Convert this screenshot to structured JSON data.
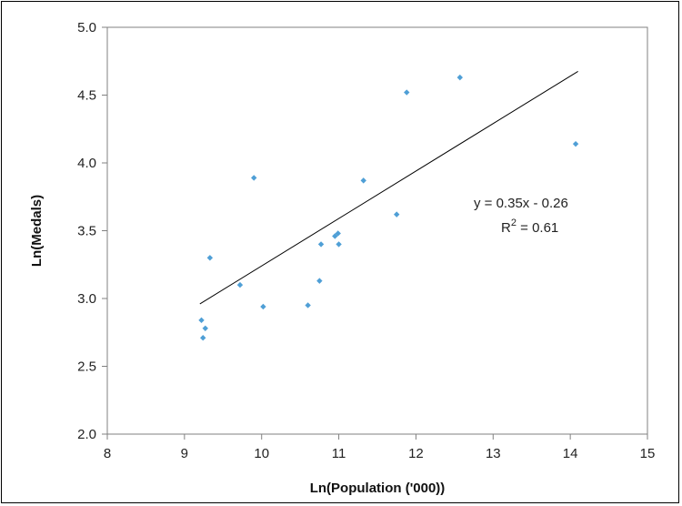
{
  "chart_data": {
    "type": "scatter",
    "xlabel": "Ln(Population ('000))",
    "ylabel": "Ln(Medals)",
    "xlim": [
      8,
      15
    ],
    "ylim": [
      2.0,
      5.0
    ],
    "x_ticks": [
      "8",
      "9",
      "10",
      "11",
      "12",
      "13",
      "14",
      "15"
    ],
    "y_ticks": [
      "2.0",
      "2.5",
      "3.0",
      "3.5",
      "4.0",
      "4.5",
      "5.0"
    ],
    "grid": false,
    "legend": "none",
    "marker_color": "#4f9fd6",
    "trendline_color": "#000000",
    "series": [
      {
        "points": [
          [
            9.22,
            2.84
          ],
          [
            9.24,
            2.71
          ],
          [
            9.27,
            2.78
          ],
          [
            9.33,
            3.3
          ],
          [
            9.72,
            3.1
          ],
          [
            9.9,
            3.89
          ],
          [
            10.02,
            2.94
          ],
          [
            10.6,
            2.95
          ],
          [
            10.75,
            3.13
          ],
          [
            10.77,
            3.4
          ],
          [
            10.95,
            3.46
          ],
          [
            10.99,
            3.48
          ],
          [
            11.0,
            3.4
          ],
          [
            11.32,
            3.87
          ],
          [
            11.75,
            3.62
          ],
          [
            11.88,
            4.52
          ],
          [
            12.57,
            4.63
          ],
          [
            14.07,
            4.14
          ]
        ]
      }
    ],
    "trendline": {
      "x": [
        9.2,
        14.1
      ],
      "slope": 0.35,
      "intercept": -0.26
    },
    "annotation": {
      "equation": "y = 0.35x - 0.26",
      "r_squared_label": "R",
      "r_squared_sup": "2",
      "r_squared_value": " = 0.61"
    }
  }
}
